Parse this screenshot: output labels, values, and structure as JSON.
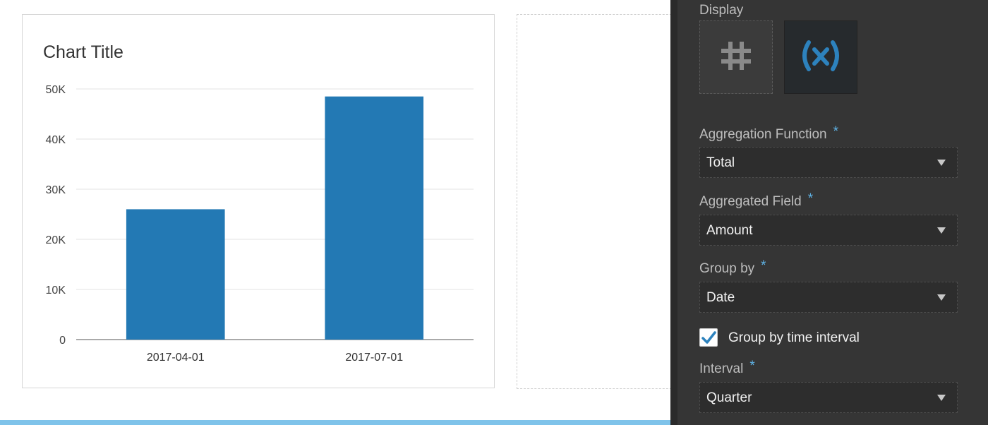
{
  "chart": {
    "title": "Chart Title",
    "colors": {
      "bar": "#2379b4",
      "grid": "#e3e3e3",
      "axis": "#555555"
    }
  },
  "chart_data": {
    "type": "bar",
    "title": "Chart Title",
    "categories": [
      "2017-04-01",
      "2017-07-01"
    ],
    "values": [
      26000,
      48500
    ],
    "ylim": [
      0,
      50000
    ],
    "yticks": [
      0,
      10000,
      20000,
      30000,
      40000,
      50000
    ],
    "ytick_labels": [
      "0",
      "10K",
      "20K",
      "30K",
      "40K",
      "50K"
    ],
    "xlabel": "",
    "ylabel": "",
    "grid": true
  },
  "panel": {
    "display_label": "Display",
    "display_options": [
      {
        "icon": "hash-icon",
        "active": false
      },
      {
        "icon": "variable-icon",
        "active": true
      }
    ],
    "required_mark": "*",
    "aggregation_function": {
      "label": "Aggregation Function",
      "value": "Total"
    },
    "aggregated_field": {
      "label": "Aggregated Field",
      "value": "Amount"
    },
    "group_by": {
      "label": "Group by",
      "value": "Date"
    },
    "group_by_time_interval": {
      "label": "Group by time interval",
      "checked": true
    },
    "interval": {
      "label": "Interval",
      "value": "Quarter"
    },
    "accent_color": "#5fb3e6"
  }
}
